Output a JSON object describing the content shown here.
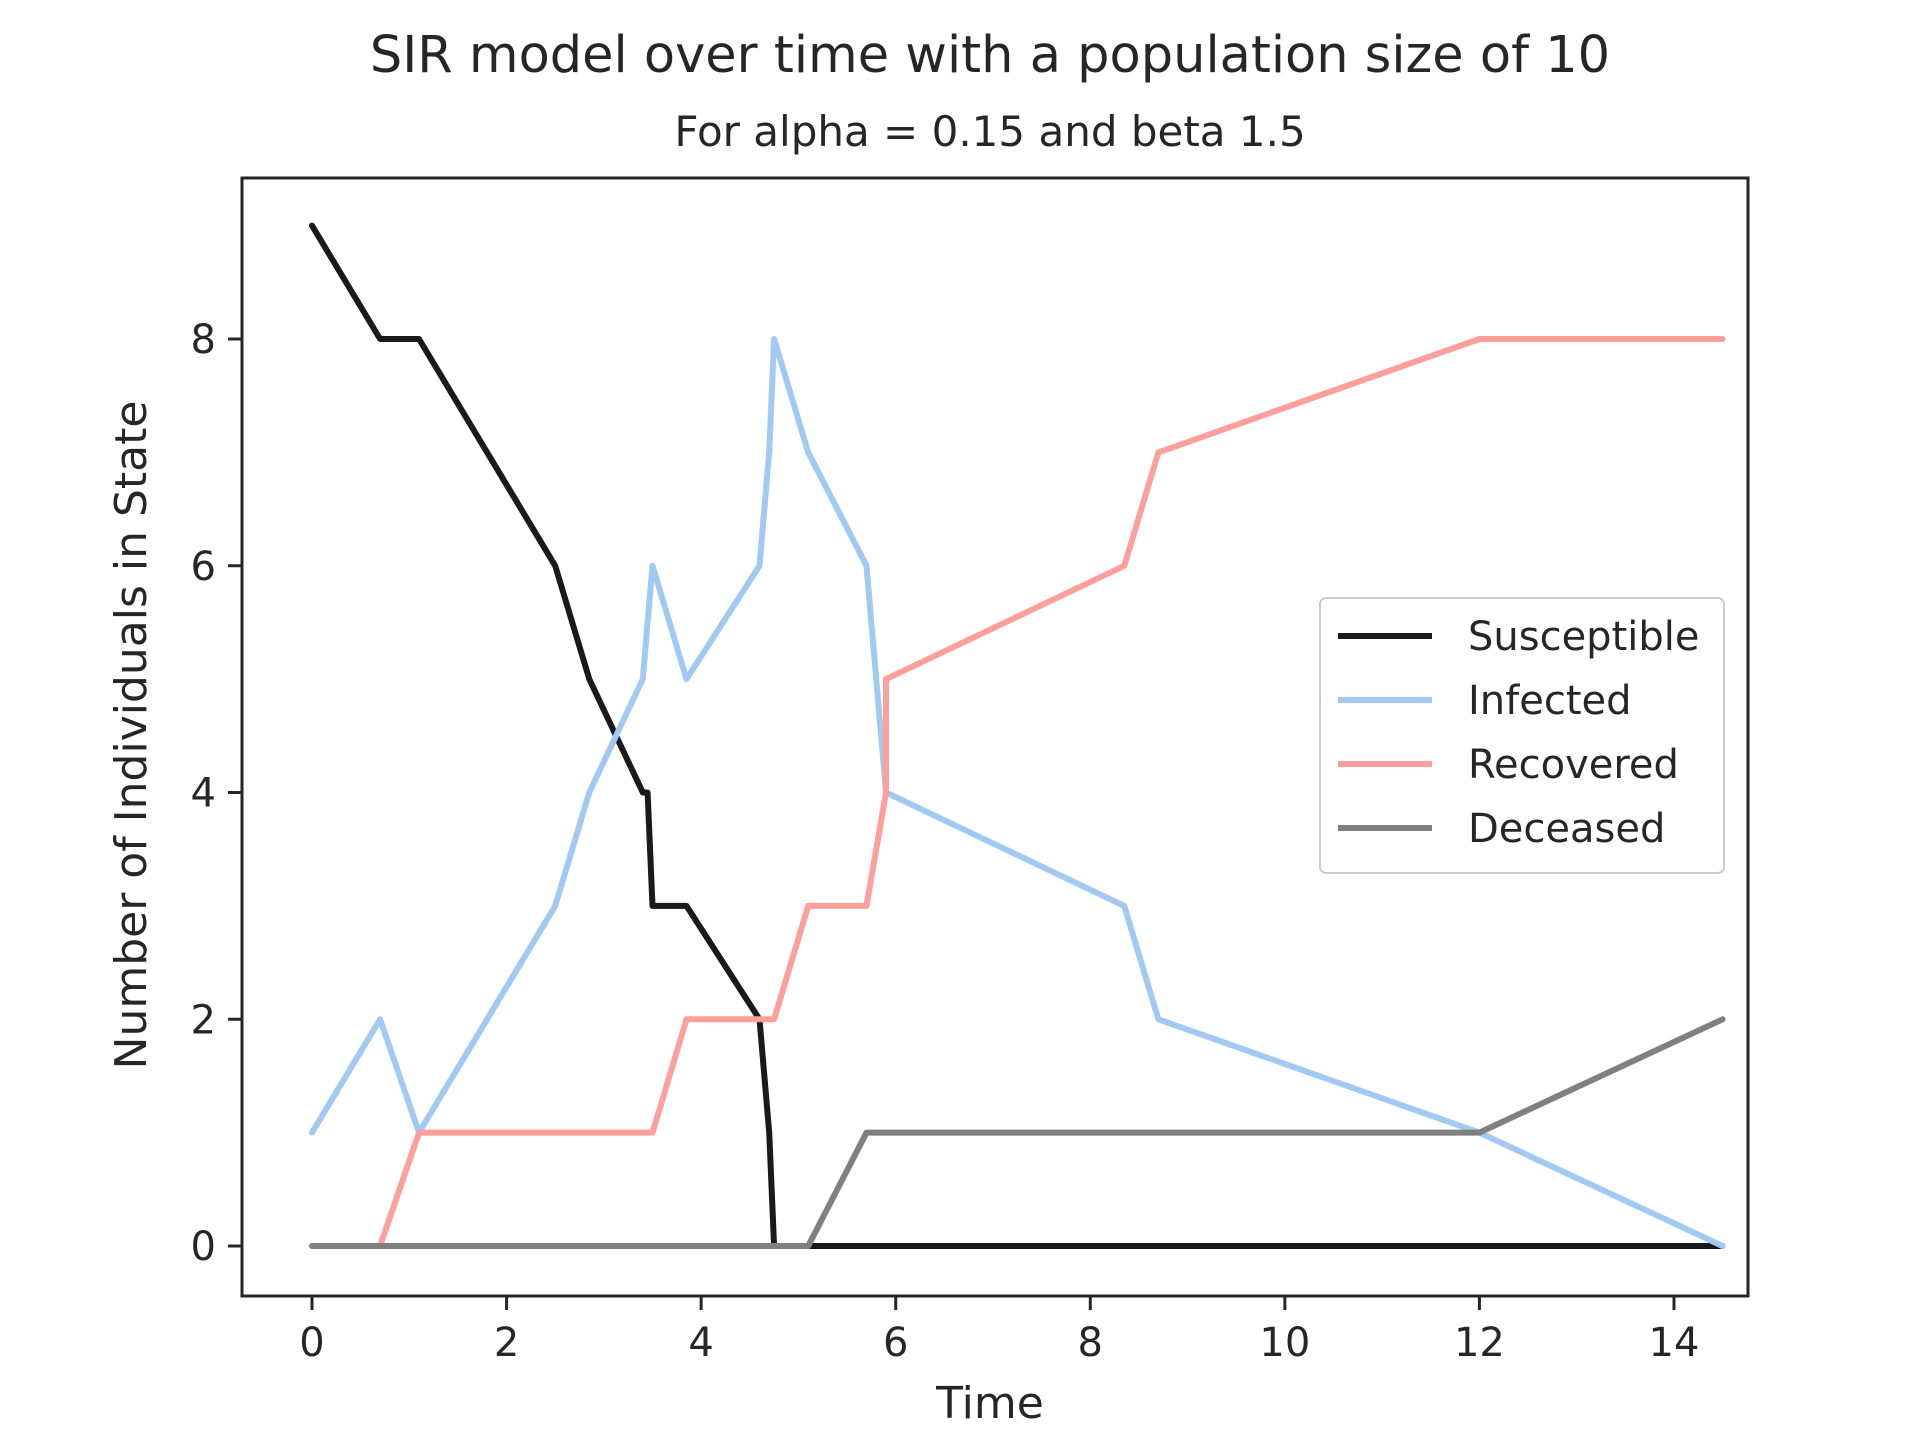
{
  "chart_data": {
    "type": "line",
    "title": "SIR model over time with a population size of 10",
    "subtitle": "For alpha = 0.15 and beta 1.5",
    "xlabel": "Time",
    "ylabel": "Number of Individuals in State",
    "xlim": [
      -0.75,
      15.2
    ],
    "ylim": [
      -0.45,
      9.4
    ],
    "xticks": [
      0,
      2,
      4,
      6,
      8,
      10,
      12,
      14
    ],
    "yticks": [
      0,
      2,
      4,
      6,
      8
    ],
    "grid": false,
    "legend_position": "center-right",
    "series": [
      {
        "name": "Susceptible",
        "color": "#1a1a1a",
        "x": [
          0,
          0.7,
          1.1,
          1.8,
          2.5,
          2.85,
          3.4,
          3.45,
          3.5,
          3.85,
          4.6,
          4.7,
          4.75,
          5.1,
          14.5
        ],
        "y": [
          9,
          8,
          8,
          7,
          6,
          5,
          4,
          4,
          3,
          3,
          2,
          1,
          0,
          0,
          0
        ]
      },
      {
        "name": "Infected",
        "color": "#a1c9f4",
        "x": [
          0,
          0.7,
          1.1,
          1.8,
          2.5,
          2.85,
          3.4,
          3.5,
          3.85,
          4.6,
          4.7,
          4.75,
          5.1,
          5.7,
          5.9,
          8.35,
          8.7,
          12,
          14.5
        ],
        "y": [
          1,
          2,
          1,
          2,
          3,
          4,
          5,
          6,
          5,
          6,
          7,
          8,
          7,
          6,
          4,
          3,
          2,
          1,
          0
        ]
      },
      {
        "name": "Recovered",
        "color": "#ff9f9b",
        "x": [
          0,
          0.7,
          1.1,
          3.5,
          3.85,
          4.75,
          5.1,
          5.7,
          5.9,
          5.9,
          8.35,
          8.7,
          12,
          14.5
        ],
        "y": [
          0,
          0,
          1,
          1,
          2,
          2,
          3,
          3,
          4,
          5,
          6,
          7,
          8,
          8
        ]
      },
      {
        "name": "Deceased",
        "color": "#808080",
        "x": [
          0,
          4.75,
          5.1,
          5.7,
          12,
          14.5
        ],
        "y": [
          0,
          0,
          0,
          1,
          1,
          2
        ]
      }
    ]
  }
}
